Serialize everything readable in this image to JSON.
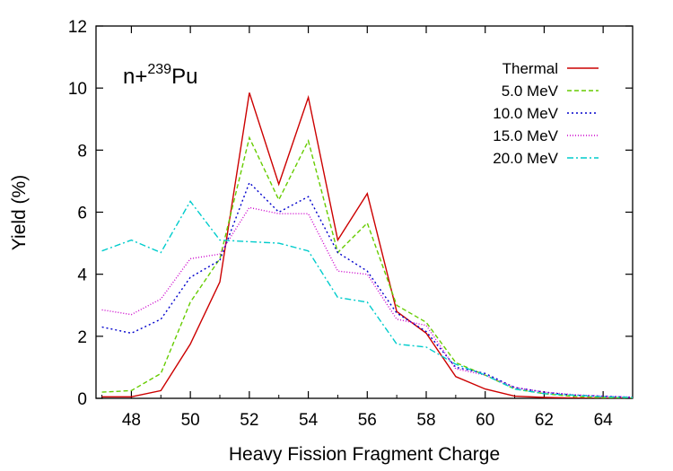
{
  "chart_data": {
    "type": "line",
    "xlabel": "Heavy Fission Fragment Charge",
    "ylabel": "Yield (%)",
    "xlim": [
      46.8,
      65.0
    ],
    "ylim": [
      0,
      12
    ],
    "xticks": [
      48,
      50,
      52,
      54,
      56,
      58,
      60,
      62,
      64
    ],
    "yticks": [
      0,
      2,
      4,
      6,
      8,
      10,
      12
    ],
    "annotation": {
      "base": "n+",
      "superscript": "239",
      "element": "Pu"
    },
    "legend_position": "top-right",
    "x": [
      47,
      48,
      49,
      50,
      51,
      52,
      53,
      54,
      55,
      56,
      57,
      58,
      59,
      60,
      61,
      62,
      63,
      64,
      65
    ],
    "series": [
      {
        "name": "Thermal",
        "color": "#cc0000",
        "dash": "",
        "values": [
          0.05,
          0.05,
          0.25,
          1.75,
          3.75,
          9.85,
          6.9,
          9.7,
          5.1,
          6.6,
          2.8,
          2.1,
          0.7,
          0.3,
          0.07,
          0.03,
          0.01,
          0.0,
          0.0
        ]
      },
      {
        "name": "5.0 MeV",
        "color": "#66cc00",
        "dash": "5,3",
        "values": [
          0.2,
          0.25,
          0.8,
          3.1,
          4.5,
          8.4,
          6.4,
          8.3,
          4.7,
          5.65,
          3.0,
          2.45,
          1.15,
          0.75,
          0.3,
          0.15,
          0.06,
          0.02,
          0.01
        ]
      },
      {
        "name": "10.0 MeV",
        "color": "#0000cc",
        "dash": "2,3",
        "values": [
          2.3,
          2.1,
          2.55,
          3.9,
          4.45,
          6.95,
          6.0,
          6.5,
          4.7,
          4.1,
          2.75,
          2.15,
          1.0,
          0.8,
          0.35,
          0.2,
          0.1,
          0.07,
          0.03
        ]
      },
      {
        "name": "15.0 MeV",
        "color": "#cc00cc",
        "dash": "1,2",
        "values": [
          2.85,
          2.7,
          3.2,
          4.5,
          4.65,
          6.15,
          5.95,
          5.95,
          4.1,
          4.0,
          2.55,
          2.35,
          0.95,
          0.75,
          0.35,
          0.2,
          0.12,
          0.07,
          0.04
        ]
      },
      {
        "name": "20.0 MeV",
        "color": "#00cccc",
        "dash": "7,3,2,3",
        "values": [
          4.75,
          5.1,
          4.7,
          6.35,
          5.1,
          5.05,
          5.0,
          4.75,
          3.25,
          3.1,
          1.75,
          1.65,
          1.1,
          0.75,
          0.3,
          0.15,
          0.1,
          0.05,
          0.03
        ]
      }
    ]
  }
}
